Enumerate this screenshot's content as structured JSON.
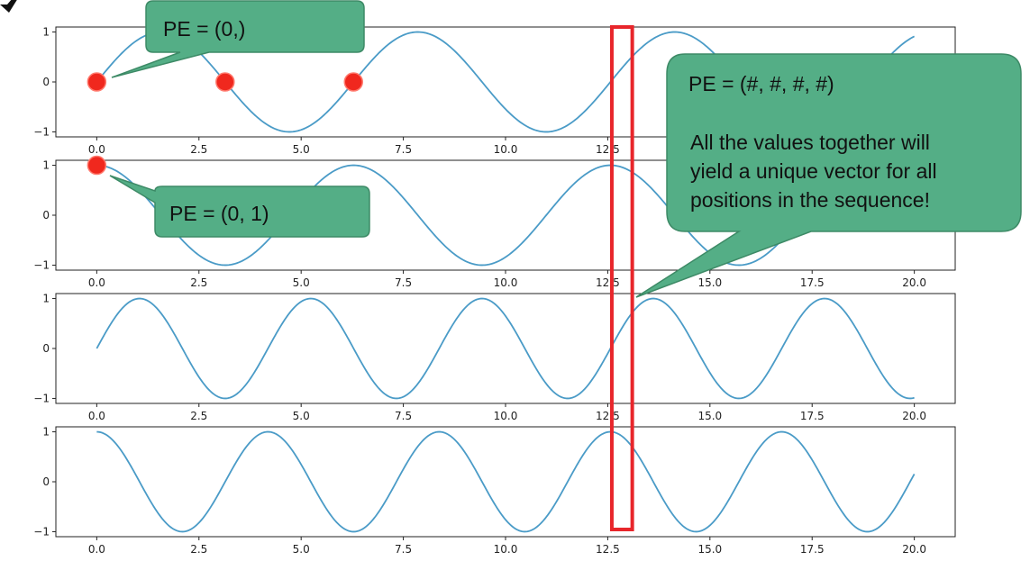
{
  "colors": {
    "curve": "#4a9bc7",
    "marker": "#f0281e",
    "callout_fill": "#54ae86",
    "callout_stroke": "#3d8a66",
    "highlight": "#e8262b",
    "axes": "#222222"
  },
  "callouts": {
    "top": "PE = (0,)",
    "middle": "PE = (0, 1)",
    "right_line1": "PE = (#, #, #, #)",
    "right_line2": "All the values together will",
    "right_line3": "yield a unique vector for all",
    "right_line4": "positions in the sequence!"
  },
  "highlight_band": {
    "x_from": 12.6,
    "x_to": 13.1
  },
  "chart_data": [
    {
      "type": "line",
      "series": [
        {
          "function": "sin",
          "frequency": 1,
          "x_start": 0,
          "x_end": 20
        }
      ],
      "markers": [
        {
          "x": 0,
          "y": 0
        },
        {
          "x": 3.14,
          "y": 0
        },
        {
          "x": 6.28,
          "y": 0
        }
      ],
      "xticks": [
        "0.0",
        "2.5",
        "5.0",
        "7.5",
        "10.0",
        "12.5"
      ],
      "yticks": [
        "1",
        "0",
        "−1"
      ],
      "xlim": [
        -1,
        21
      ],
      "ylim": [
        -1.1,
        1.1
      ]
    },
    {
      "type": "line",
      "series": [
        {
          "function": "cos",
          "frequency": 1,
          "x_start": 0,
          "x_end": 20
        }
      ],
      "markers": [
        {
          "x": 0,
          "y": 1
        }
      ],
      "xticks": [
        "0.0",
        "2.5",
        "5.0",
        "7.5",
        "10.0",
        "12.5",
        "15.0",
        "17.5",
        "20.0"
      ],
      "yticks": [
        "1",
        "0",
        "−1"
      ],
      "xlim": [
        -1,
        21
      ],
      "ylim": [
        -1.1,
        1.1
      ]
    },
    {
      "type": "line",
      "series": [
        {
          "function": "sin",
          "frequency": 1.5,
          "x_start": 0,
          "x_end": 20
        }
      ],
      "markers": [],
      "xticks": [
        "0.0",
        "2.5",
        "5.0",
        "7.5",
        "10.0",
        "12.5",
        "15.0",
        "17.5",
        "20.0"
      ],
      "yticks": [
        "1",
        "0",
        "−1"
      ],
      "xlim": [
        -1,
        21
      ],
      "ylim": [
        -1.1,
        1.1
      ]
    },
    {
      "type": "line",
      "series": [
        {
          "function": "cos",
          "frequency": 1.5,
          "x_start": 0,
          "x_end": 20
        }
      ],
      "markers": [],
      "xticks": [
        "0.0",
        "2.5",
        "5.0",
        "7.5",
        "10.0",
        "12.5",
        "15.0",
        "17.5",
        "20.0"
      ],
      "yticks": [
        "1",
        "0",
        "−1"
      ],
      "xlim": [
        -1,
        21
      ],
      "ylim": [
        -1.1,
        1.1
      ]
    }
  ]
}
